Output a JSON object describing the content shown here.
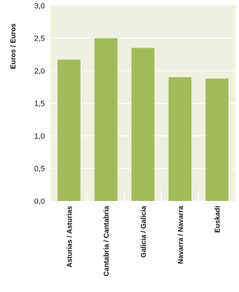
{
  "chart_data": {
    "type": "bar",
    "title": "",
    "xlabel": "",
    "ylabel": "Euros / Euros",
    "categories": [
      "Asturias / Asturias",
      "Cantabria / Cantabria",
      "Galicia / Galicia",
      "Navarra / Navarra",
      "Euskadi"
    ],
    "values": [
      2.17,
      2.5,
      2.35,
      1.9,
      1.88
    ],
    "ylim": [
      0,
      3
    ],
    "yticks": [
      "0,0",
      "0,5",
      "1,0",
      "1,5",
      "2,0",
      "2,5",
      "3,0"
    ],
    "bar_color": "#a3ba5a",
    "plot_background": "#f0f0e0",
    "grid": true,
    "grid_color": "#ffffff",
    "legend": "none"
  }
}
